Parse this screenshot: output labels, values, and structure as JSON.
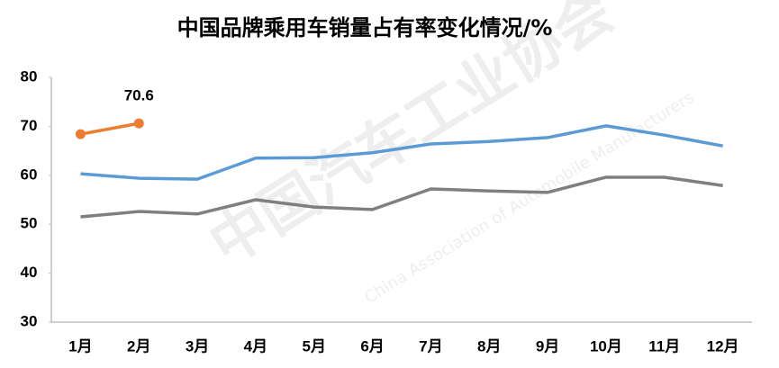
{
  "chart_data": {
    "type": "line",
    "title": "中国品牌乘用车销量占有率变化情况/%",
    "watermark": [
      "中国汽车工业协会",
      "China Association of Automobile Manufacturers"
    ],
    "categories": [
      "1月",
      "2月",
      "3月",
      "4月",
      "5月",
      "6月",
      "7月",
      "8月",
      "9月",
      "10月",
      "11月",
      "12月"
    ],
    "series": [
      {
        "color": "#5b9bd5",
        "values": [
          60.3,
          59.4,
          59.2,
          63.5,
          63.6,
          64.6,
          66.4,
          66.9,
          67.7,
          70.1,
          68.2,
          66.0
        ]
      },
      {
        "color": "#7f7f7f",
        "values": [
          51.5,
          52.6,
          52.1,
          55.0,
          53.5,
          53.0,
          57.2,
          56.8,
          56.5,
          59.6,
          59.6,
          57.9
        ]
      },
      {
        "color": "#ed7d31",
        "markers": true,
        "show_last_value": true,
        "values": [
          68.4,
          70.6,
          null,
          null,
          null,
          null,
          null,
          null,
          null,
          null,
          null,
          null
        ]
      }
    ],
    "ylim": [
      30,
      80
    ],
    "yticks": [
      30,
      40,
      50,
      60,
      70,
      80
    ],
    "grid": false
  }
}
